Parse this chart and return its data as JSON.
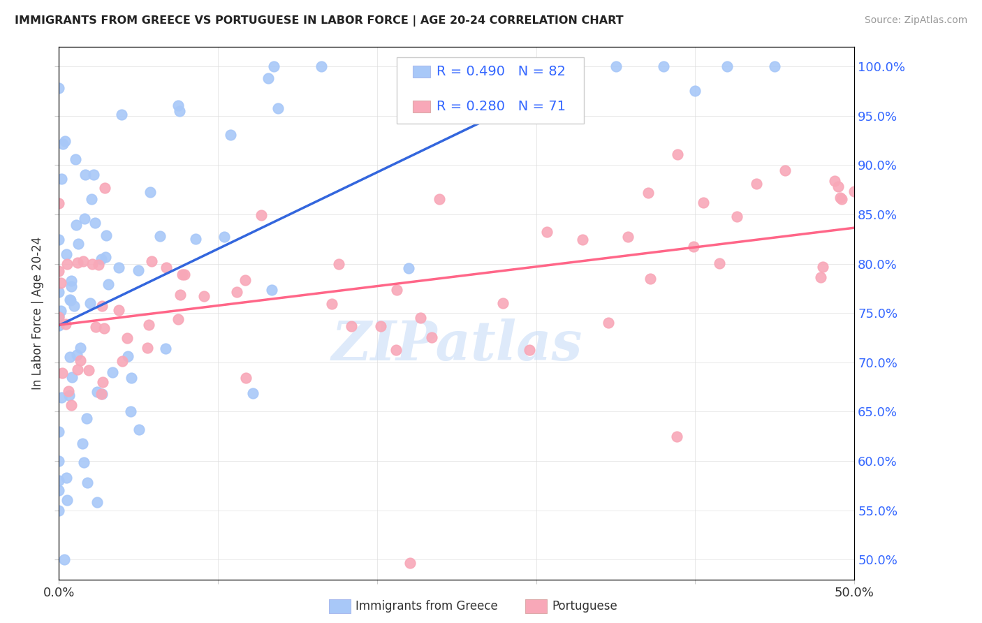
{
  "title": "IMMIGRANTS FROM GREECE VS PORTUGUESE IN LABOR FORCE | AGE 20-24 CORRELATION CHART",
  "source": "Source: ZipAtlas.com",
  "ylabel": "In Labor Force | Age 20-24",
  "xlim": [
    0.0,
    0.5
  ],
  "ylim": [
    0.48,
    1.02
  ],
  "x_tick_positions": [
    0.0,
    0.1,
    0.2,
    0.3,
    0.4,
    0.5
  ],
  "x_tick_labels": [
    "0.0%",
    "",
    "",
    "",
    "",
    "50.0%"
  ],
  "y_tick_positions": [
    0.5,
    0.55,
    0.6,
    0.65,
    0.7,
    0.75,
    0.8,
    0.85,
    0.9,
    0.95,
    1.0
  ],
  "y_tick_labels": [
    "50.0%",
    "55.0%",
    "60.0%",
    "65.0%",
    "70.0%",
    "75.0%",
    "80.0%",
    "85.0%",
    "90.0%",
    "95.0%",
    "100.0%"
  ],
  "legend_R_greece": "R = 0.490",
  "legend_N_greece": "N = 82",
  "legend_R_portuguese": "R = 0.280",
  "legend_N_portuguese": "N = 71",
  "greece_color": "#a8c8f8",
  "portuguese_color": "#f8a8b8",
  "greece_line_color": "#3366dd",
  "portuguese_line_color": "#ff6688",
  "watermark_color": "#c8ddf8",
  "legend_label_greece": "Immigrants from Greece",
  "legend_label_portuguese": "Portuguese"
}
